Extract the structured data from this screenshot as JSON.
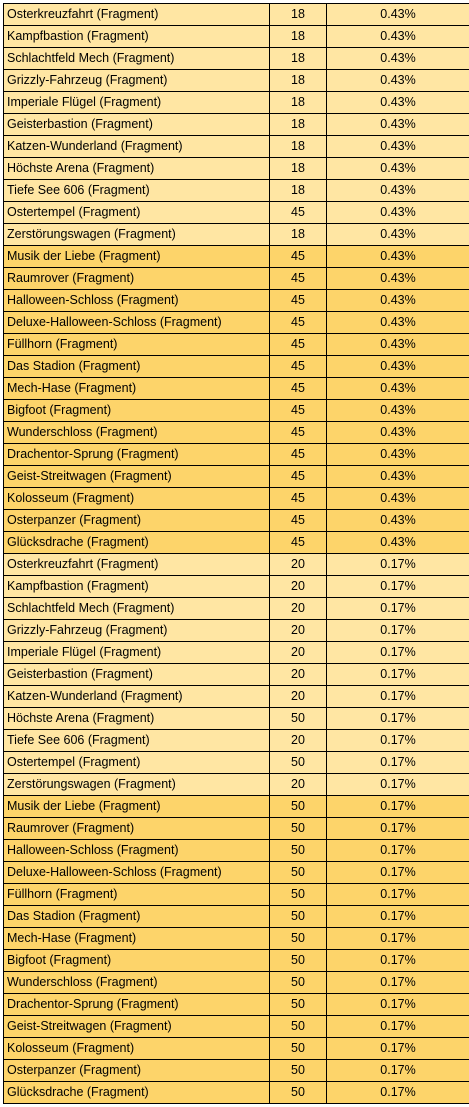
{
  "colors": {
    "light": "#ffe6a3",
    "dark": "#fdd46a",
    "border": "#000000"
  },
  "rows": [
    {
      "name": "Osterkreuzfahrt (Fragment)",
      "qty": "18",
      "pct": "0.43%",
      "shade": "light"
    },
    {
      "name": "Kampfbastion (Fragment)",
      "qty": "18",
      "pct": "0.43%",
      "shade": "light"
    },
    {
      "name": "Schlachtfeld Mech (Fragment)",
      "qty": "18",
      "pct": "0.43%",
      "shade": "light"
    },
    {
      "name": "Grizzly-Fahrzeug (Fragment)",
      "qty": "18",
      "pct": "0.43%",
      "shade": "light"
    },
    {
      "name": "Imperiale Flügel (Fragment)",
      "qty": "18",
      "pct": "0.43%",
      "shade": "light"
    },
    {
      "name": "Geisterbastion (Fragment)",
      "qty": "18",
      "pct": "0.43%",
      "shade": "light"
    },
    {
      "name": "Katzen-Wunderland (Fragment)",
      "qty": "18",
      "pct": "0.43%",
      "shade": "light"
    },
    {
      "name": "Höchste Arena (Fragment)",
      "qty": "18",
      "pct": "0.43%",
      "shade": "light"
    },
    {
      "name": "Tiefe See 606 (Fragment)",
      "qty": "18",
      "pct": "0.43%",
      "shade": "light"
    },
    {
      "name": "Ostertempel (Fragment)",
      "qty": "45",
      "pct": "0.43%",
      "shade": "light"
    },
    {
      "name": "Zerstörungswagen (Fragment)",
      "qty": "18",
      "pct": "0.43%",
      "shade": "light"
    },
    {
      "name": "Musik der Liebe (Fragment)",
      "qty": "45",
      "pct": "0.43%",
      "shade": "dark"
    },
    {
      "name": "Raumrover (Fragment)",
      "qty": "45",
      "pct": "0.43%",
      "shade": "dark"
    },
    {
      "name": "Halloween-Schloss (Fragment)",
      "qty": "45",
      "pct": "0.43%",
      "shade": "dark"
    },
    {
      "name": "Deluxe-Halloween-Schloss (Fragment)",
      "qty": "45",
      "pct": "0.43%",
      "shade": "dark"
    },
    {
      "name": "Füllhorn (Fragment)",
      "qty": "45",
      "pct": "0.43%",
      "shade": "dark"
    },
    {
      "name": "Das Stadion (Fragment)",
      "qty": "45",
      "pct": "0.43%",
      "shade": "dark"
    },
    {
      "name": "Mech-Hase (Fragment)",
      "qty": "45",
      "pct": "0.43%",
      "shade": "dark"
    },
    {
      "name": "Bigfoot (Fragment)",
      "qty": "45",
      "pct": "0.43%",
      "shade": "dark"
    },
    {
      "name": "Wunderschloss (Fragment)",
      "qty": "45",
      "pct": "0.43%",
      "shade": "dark"
    },
    {
      "name": "Drachentor-Sprung (Fragment)",
      "qty": "45",
      "pct": "0.43%",
      "shade": "dark"
    },
    {
      "name": "Geist-Streitwagen (Fragment)",
      "qty": "45",
      "pct": "0.43%",
      "shade": "dark"
    },
    {
      "name": "Kolosseum (Fragment)",
      "qty": "45",
      "pct": "0.43%",
      "shade": "dark"
    },
    {
      "name": "Osterpanzer (Fragment)",
      "qty": "45",
      "pct": "0.43%",
      "shade": "dark"
    },
    {
      "name": "Glücksdrache (Fragment)",
      "qty": "45",
      "pct": "0.43%",
      "shade": "dark"
    },
    {
      "name": "Osterkreuzfahrt (Fragment)",
      "qty": "20",
      "pct": "0.17%",
      "shade": "light"
    },
    {
      "name": "Kampfbastion (Fragment)",
      "qty": "20",
      "pct": "0.17%",
      "shade": "light"
    },
    {
      "name": "Schlachtfeld Mech (Fragment)",
      "qty": "20",
      "pct": "0.17%",
      "shade": "light"
    },
    {
      "name": "Grizzly-Fahrzeug (Fragment)",
      "qty": "20",
      "pct": "0.17%",
      "shade": "light"
    },
    {
      "name": "Imperiale Flügel (Fragment)",
      "qty": "20",
      "pct": "0.17%",
      "shade": "light"
    },
    {
      "name": "Geisterbastion (Fragment)",
      "qty": "20",
      "pct": "0.17%",
      "shade": "light"
    },
    {
      "name": "Katzen-Wunderland (Fragment)",
      "qty": "20",
      "pct": "0.17%",
      "shade": "light"
    },
    {
      "name": "Höchste Arena (Fragment)",
      "qty": "50",
      "pct": "0.17%",
      "shade": "light"
    },
    {
      "name": "Tiefe See 606 (Fragment)",
      "qty": "20",
      "pct": "0.17%",
      "shade": "light"
    },
    {
      "name": "Ostertempel (Fragment)",
      "qty": "50",
      "pct": "0.17%",
      "shade": "light"
    },
    {
      "name": "Zerstörungswagen (Fragment)",
      "qty": "20",
      "pct": "0.17%",
      "shade": "light"
    },
    {
      "name": "Musik der Liebe (Fragment)",
      "qty": "50",
      "pct": "0.17%",
      "shade": "dark"
    },
    {
      "name": "Raumrover (Fragment)",
      "qty": "50",
      "pct": "0.17%",
      "shade": "dark"
    },
    {
      "name": "Halloween-Schloss (Fragment)",
      "qty": "50",
      "pct": "0.17%",
      "shade": "dark"
    },
    {
      "name": "Deluxe-Halloween-Schloss (Fragment)",
      "qty": "50",
      "pct": "0.17%",
      "shade": "dark"
    },
    {
      "name": "Füllhorn (Fragment)",
      "qty": "50",
      "pct": "0.17%",
      "shade": "dark"
    },
    {
      "name": "Das Stadion (Fragment)",
      "qty": "50",
      "pct": "0.17%",
      "shade": "dark"
    },
    {
      "name": "Mech-Hase (Fragment)",
      "qty": "50",
      "pct": "0.17%",
      "shade": "dark"
    },
    {
      "name": "Bigfoot (Fragment)",
      "qty": "50",
      "pct": "0.17%",
      "shade": "dark"
    },
    {
      "name": "Wunderschloss (Fragment)",
      "qty": "50",
      "pct": "0.17%",
      "shade": "dark"
    },
    {
      "name": "Drachentor-Sprung (Fragment)",
      "qty": "50",
      "pct": "0.17%",
      "shade": "dark"
    },
    {
      "name": "Geist-Streitwagen (Fragment)",
      "qty": "50",
      "pct": "0.17%",
      "shade": "dark"
    },
    {
      "name": "Kolosseum (Fragment)",
      "qty": "50",
      "pct": "0.17%",
      "shade": "dark"
    },
    {
      "name": "Osterpanzer (Fragment)",
      "qty": "50",
      "pct": "0.17%",
      "shade": "dark"
    },
    {
      "name": "Glücksdrache (Fragment)",
      "qty": "50",
      "pct": "0.17%",
      "shade": "dark"
    }
  ]
}
